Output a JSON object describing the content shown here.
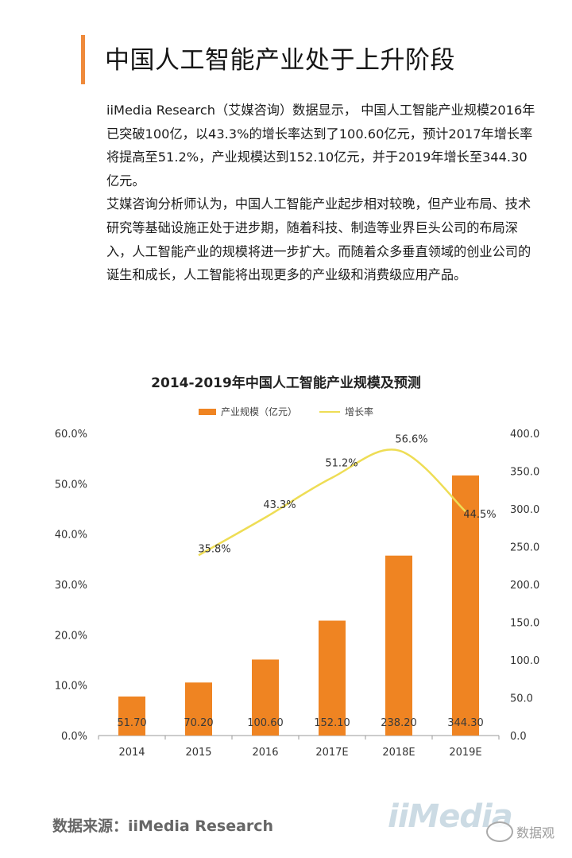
{
  "page": {
    "title": "中国人工智能产业处于上升阶段",
    "paragraphs": [
      "iiMedia Research（艾媒咨询）数据显示， 中国人工智能产业规模2016年已突破100亿，以43.3%的增长率达到了100.60亿元，预计2017年增长率将提高至51.2%，产业规模达到152.10亿元，并于2019年增长至344.30亿元。",
      "艾媒咨询分析师认为，中国人工智能产业起步相对较晚，但产业布局、技术研究等基础设施正处于进步期，随着科技、制造等业界巨头公司的布局深入，人工智能产业的规模将进一步扩大。而随着众多垂直领域的创业公司的诞生和成长，人工智能将出现更多的产业级和消费级应用产品。"
    ],
    "source": "数据来源：iiMedia Research",
    "logo_text": "iiMedia",
    "watermark_text": "数据观"
  },
  "colors": {
    "accent": "#ef8a3b",
    "bar": "#ef8422",
    "line": "#eedd55",
    "axis": "#999999"
  },
  "chart_data": {
    "type": "bar",
    "title": "2014-2019年中国人工智能产业规模及预测",
    "categories": [
      "2014",
      "2015",
      "2016",
      "2017E",
      "2018E",
      "2019E"
    ],
    "series": [
      {
        "name": "产业规模（亿元）",
        "type": "bar",
        "axis": "right",
        "values": [
          51.7,
          70.2,
          100.6,
          152.1,
          238.2,
          344.3
        ],
        "labels": [
          "51.70",
          "70.20",
          "100.60",
          "152.10",
          "238.20",
          "344.30"
        ]
      },
      {
        "name": "增长率",
        "type": "line",
        "axis": "left",
        "values": [
          null,
          35.8,
          43.3,
          51.2,
          56.6,
          44.5
        ],
        "labels": [
          null,
          "35.8%",
          "43.3%",
          "51.2%",
          "56.6%",
          "44.5%"
        ]
      }
    ],
    "y_left": {
      "min": 0,
      "max": 60,
      "ticks": [
        "0.0%",
        "10.0%",
        "20.0%",
        "30.0%",
        "40.0%",
        "50.0%",
        "60.0%"
      ]
    },
    "y_right": {
      "min": 0,
      "max": 400,
      "ticks": [
        "0.0",
        "50.0",
        "100.0",
        "150.0",
        "200.0",
        "250.0",
        "300.0",
        "350.0",
        "400.0"
      ]
    },
    "legend_position": "top-center",
    "grid": false
  }
}
